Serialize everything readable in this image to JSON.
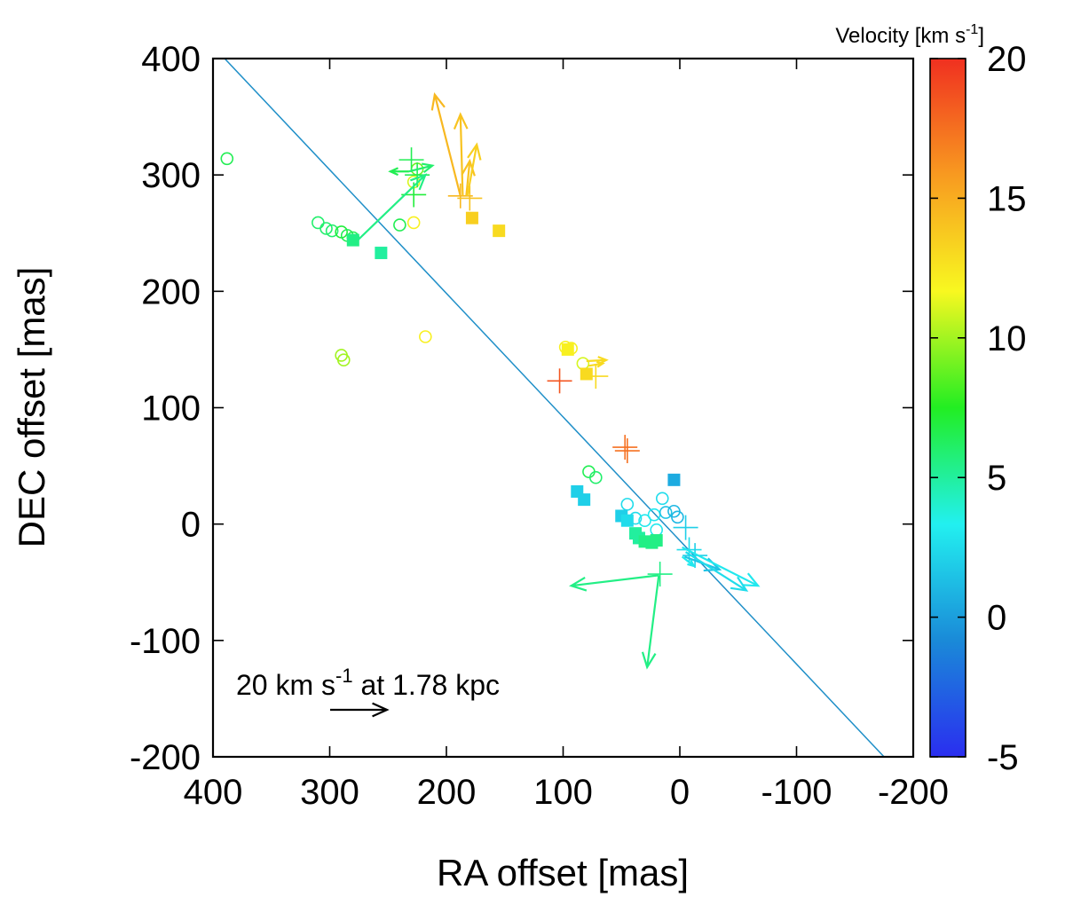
{
  "chart_data": {
    "type": "scatter",
    "title": "",
    "xlabel": "RA offset [mas]",
    "ylabel": "DEC offset [mas]",
    "xlim": [
      400,
      -200
    ],
    "ylim": [
      -200,
      400
    ],
    "x_ticks": [
      "400",
      "300",
      "200",
      "100",
      "0",
      "-100",
      "-200"
    ],
    "y_ticks": [
      "400",
      "300",
      "200",
      "100",
      "0",
      "-100",
      "-200"
    ],
    "x_tick_values": [
      400,
      300,
      200,
      100,
      0,
      -100,
      -200
    ],
    "y_tick_values": [
      400,
      300,
      200,
      100,
      0,
      -100,
      -200
    ],
    "colorbar": {
      "label_prefix": "Velocity [km s",
      "label_exp": "-1",
      "label_suffix": "]",
      "range": [
        -5,
        20
      ],
      "ticks": [
        "20",
        "15",
        "10",
        "5",
        "0",
        "-5"
      ],
      "tick_values": [
        20,
        15,
        10,
        5,
        0,
        -5
      ],
      "stops": [
        "#2a2ef0",
        "#1a8ad8",
        "#22f0f0",
        "#22ee22",
        "#f8f820",
        "#f89a20",
        "#f03020"
      ]
    },
    "reference_line": {
      "x1": 390,
      "y1": 400,
      "x2": -175,
      "y2": -200,
      "color": "#1f8fc8"
    },
    "scale_note": {
      "prefix": "20 km s",
      "exp": "-1",
      "suffix": " at 1.78 kpc",
      "arrow_value_kms": 20
    },
    "series": [
      {
        "name": "circles",
        "marker": "circle",
        "points": [
          {
            "x": 388,
            "y": 314,
            "v": 6.5
          },
          {
            "x": 310,
            "y": 259,
            "v": 6.0
          },
          {
            "x": 303,
            "y": 254,
            "v": 6.0
          },
          {
            "x": 298,
            "y": 252,
            "v": 6.0
          },
          {
            "x": 290,
            "y": 251,
            "v": 7.0
          },
          {
            "x": 285,
            "y": 248,
            "v": 6.5
          },
          {
            "x": 280,
            "y": 246,
            "v": 6.5
          },
          {
            "x": 240,
            "y": 257,
            "v": 6.5
          },
          {
            "x": 228,
            "y": 259,
            "v": 12.0
          },
          {
            "x": 228,
            "y": 294,
            "v": 11.0
          },
          {
            "x": 225,
            "y": 305,
            "v": 9.0
          },
          {
            "x": 290,
            "y": 145,
            "v": 10.0
          },
          {
            "x": 288,
            "y": 141,
            "v": 10.0
          },
          {
            "x": 218,
            "y": 161,
            "v": 12.0
          },
          {
            "x": 98,
            "y": 152,
            "v": 12.0
          },
          {
            "x": 93,
            "y": 151,
            "v": 12.0
          },
          {
            "x": 83,
            "y": 138,
            "v": 11.0
          },
          {
            "x": 78,
            "y": 45,
            "v": 6.5
          },
          {
            "x": 72,
            "y": 40,
            "v": 6.0
          },
          {
            "x": 45,
            "y": 17,
            "v": 2.5
          },
          {
            "x": 38,
            "y": 5,
            "v": 2.5
          },
          {
            "x": 30,
            "y": 3,
            "v": 3.0
          },
          {
            "x": 22,
            "y": 8,
            "v": 3.0
          },
          {
            "x": 15,
            "y": 22,
            "v": 2.5
          },
          {
            "x": 12,
            "y": 10,
            "v": 1.5
          },
          {
            "x": 5,
            "y": 11,
            "v": 1.0
          },
          {
            "x": 2,
            "y": 6,
            "v": 1.0
          },
          {
            "x": 20,
            "y": -5,
            "v": 3.0
          }
        ]
      },
      {
        "name": "squares",
        "marker": "square",
        "points": [
          {
            "x": 280,
            "y": 244,
            "v": 5.5
          },
          {
            "x": 256,
            "y": 233,
            "v": 5.0
          },
          {
            "x": 178,
            "y": 263,
            "v": 13.5
          },
          {
            "x": 155,
            "y": 252,
            "v": 13.0
          },
          {
            "x": 96,
            "y": 150,
            "v": 12.0
          },
          {
            "x": 80,
            "y": 129,
            "v": 13.0
          },
          {
            "x": 88,
            "y": 28,
            "v": 2.0
          },
          {
            "x": 82,
            "y": 21,
            "v": 2.0
          },
          {
            "x": 50,
            "y": 7,
            "v": 2.0
          },
          {
            "x": 45,
            "y": 3,
            "v": 2.5
          },
          {
            "x": 38,
            "y": -8,
            "v": 5.0
          },
          {
            "x": 35,
            "y": -12,
            "v": 5.0
          },
          {
            "x": 30,
            "y": -15,
            "v": 5.5
          },
          {
            "x": 24,
            "y": -16,
            "v": 5.5
          },
          {
            "x": 20,
            "y": -14,
            "v": 5.5
          },
          {
            "x": 5,
            "y": 38,
            "v": 0.5
          }
        ]
      },
      {
        "name": "crosses",
        "marker": "plus",
        "points": [
          {
            "x": 230,
            "y": 313,
            "v": 6.5
          },
          {
            "x": 225,
            "y": 300,
            "v": 6.5
          },
          {
            "x": 228,
            "y": 283,
            "v": 7.0
          },
          {
            "x": 188,
            "y": 282,
            "v": 14.5
          },
          {
            "x": 180,
            "y": 280,
            "v": 14.0
          },
          {
            "x": 103,
            "y": 123,
            "v": 18.5
          },
          {
            "x": 72,
            "y": 127,
            "v": 13.0
          },
          {
            "x": 47,
            "y": 66,
            "v": 17.5
          },
          {
            "x": 45,
            "y": 63,
            "v": 17.5
          },
          {
            "x": 17,
            "y": -43,
            "v": 5.5
          },
          {
            "x": -5,
            "y": -3,
            "v": 2.0
          },
          {
            "x": -8,
            "y": -22,
            "v": 2.5
          },
          {
            "x": -13,
            "y": -27,
            "v": 2.0
          }
        ]
      }
    ],
    "vectors": [
      {
        "x": 262,
        "y": 233,
        "dx": 0,
        "dy": 0,
        "v": 5.0
      },
      {
        "x": 278,
        "y": 242,
        "dx": -60,
        "dy": 58,
        "v": 5.5
      },
      {
        "x": 232,
        "y": 303,
        "dx": 16,
        "dy": 0,
        "v": 6.5
      },
      {
        "x": 232,
        "y": 303,
        "dx": -20,
        "dy": 5,
        "v": 6.0
      },
      {
        "x": 188,
        "y": 282,
        "dx": 22,
        "dy": 87,
        "v": 14.5
      },
      {
        "x": 186,
        "y": 282,
        "dx": 2,
        "dy": 70,
        "v": 14.0
      },
      {
        "x": 183,
        "y": 282,
        "dx": -3,
        "dy": 30,
        "v": 14.0
      },
      {
        "x": 182,
        "y": 282,
        "dx": -8,
        "dy": 44,
        "v": 13.5
      },
      {
        "x": 80,
        "y": 140,
        "dx": -17,
        "dy": 1,
        "v": 13.0
      },
      {
        "x": 78,
        "y": 136,
        "dx": -12,
        "dy": 2,
        "v": 13.0
      },
      {
        "x": 18,
        "y": -44,
        "dx": 75,
        "dy": -9,
        "v": 5.5
      },
      {
        "x": 18,
        "y": -44,
        "dx": 10,
        "dy": -79,
        "v": 5.5
      },
      {
        "x": -4,
        "y": -28,
        "dx": -30,
        "dy": -11,
        "v": 1.5
      },
      {
        "x": -2,
        "y": -20,
        "dx": -65,
        "dy": -33,
        "v": 3.0
      },
      {
        "x": -5,
        "y": -24,
        "dx": -52,
        "dy": -33,
        "v": 2.5
      },
      {
        "x": -2,
        "y": -28,
        "dx": -10,
        "dy": -8,
        "v": 3.0
      }
    ]
  }
}
